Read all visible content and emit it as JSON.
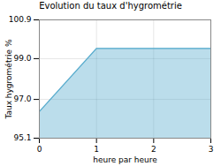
{
  "chart_data": {
    "type": "area",
    "title": "Evolution du taux d'hygrométrie",
    "x_label": "heure par heure",
    "y_label": "Taux hygrométrie %",
    "x": [
      0,
      1,
      3
    ],
    "values": [
      96.4,
      99.5,
      99.5
    ],
    "color": "#55aacc",
    "xlim": [
      0,
      3
    ],
    "ylim": [
      95.1,
      100.9
    ],
    "xticks": [
      0,
      1,
      2,
      3
    ],
    "yticks": [
      95.1,
      {
        "value": 97.0,
        "label": "97.0"
      },
      {
        "value": 99.0,
        "label": "99.0"
      },
      100.9
    ],
    "grid": true
  }
}
